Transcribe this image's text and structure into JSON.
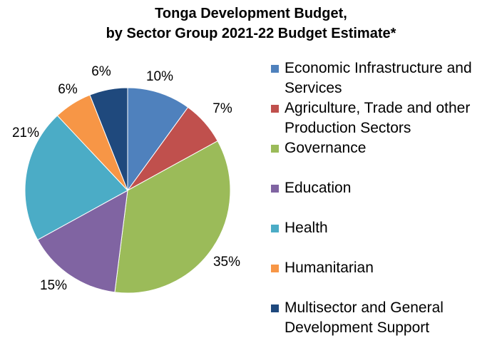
{
  "chart_data": {
    "type": "pie",
    "title_line1": "Tonga Development Budget,",
    "title_line2": "by Sector Group 2021-22 Budget Estimate*",
    "start_angle_deg": 0,
    "direction": "clockwise",
    "slices": [
      {
        "label": "Economic Infrastructure and Services",
        "value": 10,
        "display": "10%",
        "color": "#4F81BD"
      },
      {
        "label": "Agriculture, Trade and other Production Sectors",
        "value": 7,
        "display": "7%",
        "color": "#C0504D"
      },
      {
        "label": "Governance",
        "value": 35,
        "display": "35%",
        "color": "#9BBB59"
      },
      {
        "label": "Education",
        "value": 15,
        "display": "15%",
        "color": "#8064A2"
      },
      {
        "label": "Health",
        "value": 21,
        "display": "21%",
        "color": "#4BACC6"
      },
      {
        "label": "Humanitarian",
        "value": 6,
        "display": "6%",
        "color": "#F79646"
      },
      {
        "label": "Multisector and General Development Support",
        "value": 6,
        "display": "6%",
        "color": "#1F497D"
      }
    ],
    "legend_position": "right"
  }
}
